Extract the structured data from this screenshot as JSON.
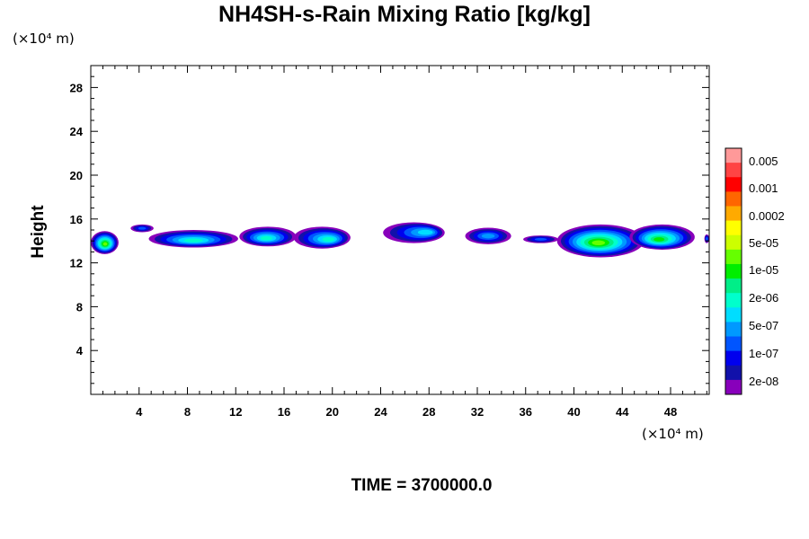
{
  "chart_data": {
    "type": "heatmap",
    "title": "NH4SH-s-Rain Mixing Ratio [kg/kg]",
    "ylabel": "Height",
    "x_unit": "(×10⁴ m)",
    "y_unit": "(×10⁴ m)",
    "xlim": [
      0,
      51.2
    ],
    "ylim": [
      0,
      30
    ],
    "x_ticks": [
      4,
      8,
      12,
      16,
      20,
      24,
      28,
      32,
      36,
      40,
      44,
      48
    ],
    "y_ticks": [
      4,
      8,
      12,
      16,
      20,
      24,
      28
    ],
    "time_label": "TIME = 3700000.0",
    "colorbar": {
      "labels": [
        "0.005",
        "0.001",
        "0.0002",
        "5e-05",
        "1e-05",
        "2e-06",
        "5e-07",
        "1e-07",
        "2e-08"
      ],
      "colors": [
        "#ff9999",
        "#ff4444",
        "#ff0000",
        "#ff6600",
        "#ffaa00",
        "#ffff00",
        "#ccff00",
        "#66ff00",
        "#00ee00",
        "#00ee88",
        "#00ffcc",
        "#00ddff",
        "#0099ff",
        "#0055ff",
        "#0000ee",
        "#1111aa",
        "#8800bb"
      ]
    },
    "features": [
      {
        "x": [
          0.0,
          2.3
        ],
        "y": [
          12.8,
          14.9
        ],
        "peak": "5e-05",
        "core": [
          1.2,
          13.7
        ]
      },
      {
        "x": [
          3.3,
          5.2
        ],
        "y": [
          14.8,
          15.5
        ],
        "peak": "1e-07"
      },
      {
        "x": [
          4.8,
          12.2
        ],
        "y": [
          13.4,
          15.0
        ],
        "peak": "2e-06",
        "core": [
          8.5,
          14.0
        ]
      },
      {
        "x": [
          12.3,
          17.0
        ],
        "y": [
          13.5,
          15.3
        ],
        "peak": "2e-06",
        "core": [
          14.5,
          14.2
        ]
      },
      {
        "x": [
          16.8,
          21.5
        ],
        "y": [
          13.3,
          15.3
        ],
        "peak": "2e-06",
        "core": [
          19.8,
          14.1
        ]
      },
      {
        "x": [
          24.2,
          29.3
        ],
        "y": [
          13.8,
          15.7
        ],
        "peak": "1e-06",
        "core": [
          28.0,
          14.8
        ]
      },
      {
        "x": [
          31.0,
          34.8
        ],
        "y": [
          13.7,
          15.2
        ],
        "peak": "5e-07"
      },
      {
        "x": [
          35.8,
          38.7
        ],
        "y": [
          13.8,
          14.5
        ],
        "peak": "1e-07"
      },
      {
        "x": [
          38.6,
          45.8
        ],
        "y": [
          12.5,
          15.5
        ],
        "peak": "5e-05",
        "core": [
          42.0,
          13.8
        ]
      },
      {
        "x": [
          44.6,
          50.0
        ],
        "y": [
          13.2,
          15.5
        ],
        "peak": "1e-05",
        "core": [
          47.0,
          14.1
        ]
      },
      {
        "x": [
          50.8,
          51.2
        ],
        "y": [
          13.8,
          14.6
        ],
        "peak": "1e-07"
      }
    ]
  }
}
